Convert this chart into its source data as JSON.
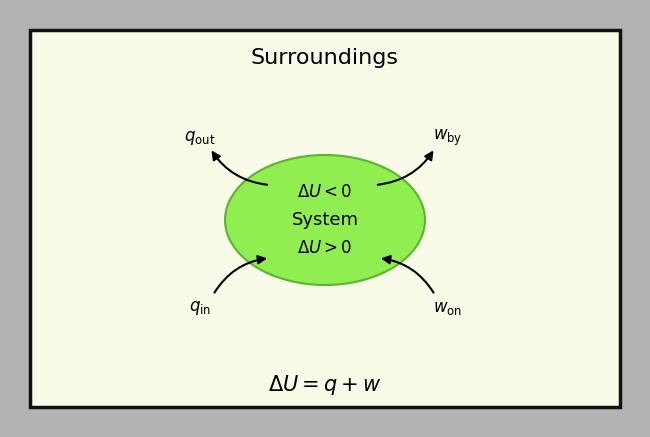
{
  "fig_width": 6.5,
  "fig_height": 4.37,
  "dpi": 100,
  "outer_bg": "#b3b3b3",
  "inner_bg": "#fafae8",
  "oval_color": "#90ee50",
  "oval_edge_color": "#5ab530",
  "title_text": "Surroundings",
  "title_fontsize": 16,
  "equation_text": "$\\Delta U = q + w$",
  "equation_fontsize": 15,
  "system_lines": [
    {
      "text": "$\\Delta U < 0$",
      "fontsize": 12
    },
    {
      "text": "System",
      "fontsize": 13
    },
    {
      "text": "$\\Delta U > 0$",
      "fontsize": 12
    }
  ],
  "label_fontsize": 12,
  "arrow_color": "#000000",
  "text_color": "#000000",
  "border_color": "#111111"
}
